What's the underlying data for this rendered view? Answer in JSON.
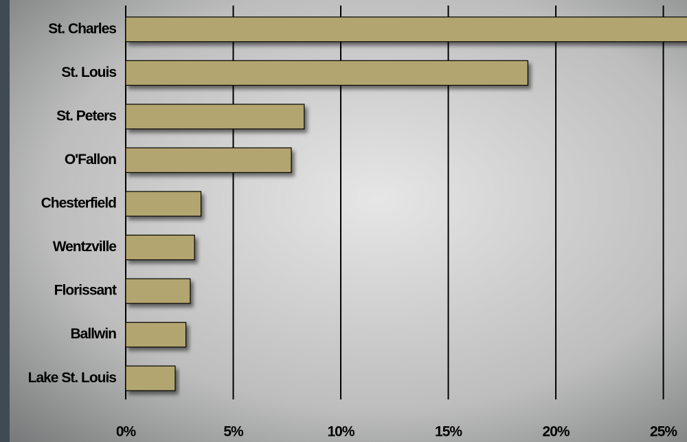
{
  "chart_data": {
    "type": "bar",
    "orientation": "horizontal",
    "categories": [
      "St. Charles",
      "St. Louis",
      "St. Peters",
      "O'Fallon",
      "Chesterfield",
      "Wentzville",
      "Florissant",
      "Ballwin",
      "Lake St. Louis"
    ],
    "values": [
      27,
      18.7,
      8.3,
      7.7,
      3.5,
      3.2,
      3.0,
      2.8,
      2.3
    ],
    "color": "#b3a56f",
    "xlim": [
      0,
      26.1
    ],
    "xticks": [
      {
        "value": 0,
        "label": "0%"
      },
      {
        "value": 5,
        "label": "5%"
      },
      {
        "value": 10,
        "label": "10%"
      },
      {
        "value": 15,
        "label": "15%"
      },
      {
        "value": 20,
        "label": "20%"
      },
      {
        "value": 25,
        "label": "25%"
      }
    ],
    "grid": true
  }
}
